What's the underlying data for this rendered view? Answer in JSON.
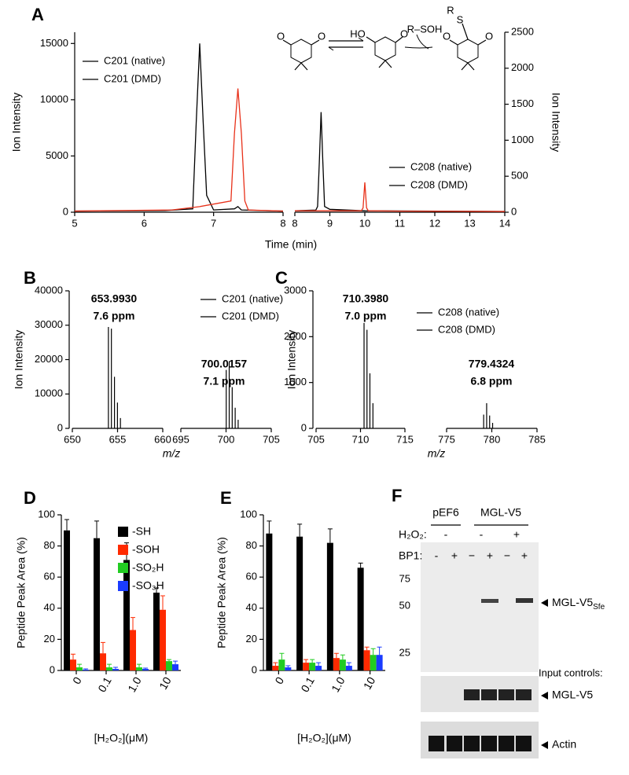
{
  "chart_data": [
    {
      "type": "chromatogram",
      "panel_label": "A",
      "x_label": "Time (min)",
      "y_label": "Ion Intensity",
      "y2_label": "Ion Intensity",
      "segments": [
        {
          "xlim": [
            5,
            8
          ],
          "xticks": [
            5,
            6,
            7,
            8
          ],
          "legend": "upper left"
        },
        {
          "xlim": [
            8,
            14
          ],
          "xticks": [
            8,
            9,
            10,
            11,
            12,
            13,
            14
          ],
          "legend": "lower right"
        }
      ],
      "ylim": [
        0,
        16000
      ],
      "yticks": [
        0,
        5000,
        10000,
        15000
      ],
      "y2lim": [
        0,
        2500
      ],
      "y2ticks": [
        0,
        500,
        1000,
        1500,
        2000,
        2500
      ],
      "series": [
        {
          "name": "C201 (native)",
          "color": "#000000",
          "segment": 0,
          "x": [
            5,
            6.3,
            6.7,
            6.75,
            6.8,
            6.85,
            6.9,
            7.0,
            7.3,
            7.35,
            7.4,
            8
          ],
          "values": [
            100,
            150,
            300,
            8000,
            15000,
            8000,
            1500,
            200,
            300,
            500,
            200,
            100
          ]
        },
        {
          "name": "C201 (DMD)",
          "color": "#e8311a",
          "segment": 0,
          "x": [
            5,
            6.4,
            6.8,
            7.25,
            7.3,
            7.35,
            7.4,
            7.45,
            7.5,
            8
          ],
          "values": [
            100,
            200,
            500,
            1000,
            7000,
            11000,
            7000,
            1000,
            200,
            100
          ]
        },
        {
          "name": "C208 (native)",
          "color": "#000000",
          "segment": 1,
          "axis": "y2",
          "x": [
            8,
            8.6,
            8.65,
            8.7,
            8.75,
            8.8,
            8.85,
            9,
            10,
            14
          ],
          "values": [
            20,
            30,
            80,
            700,
            1390,
            700,
            80,
            40,
            20,
            10
          ]
        },
        {
          "name": "C208 (DMD)",
          "color": "#e8311a",
          "segment": 1,
          "axis": "y2",
          "x": [
            8,
            9.9,
            9.95,
            10.0,
            10.05,
            10.1,
            11,
            14
          ],
          "values": [
            20,
            20,
            60,
            415,
            60,
            20,
            15,
            10
          ]
        }
      ],
      "scheme_labels": [
        "O",
        "O",
        "HO",
        "O",
        "R–SOH",
        "R",
        "S",
        "O",
        "O"
      ]
    },
    {
      "type": "mass-spectrum",
      "panel_label": "B",
      "x_label": "m/z",
      "y_label": "Ion Intensity",
      "segments": [
        {
          "xlim": [
            650,
            660
          ],
          "xticks": [
            650,
            655,
            660
          ]
        },
        {
          "xlim": [
            695,
            705
          ],
          "xticks": [
            695,
            700,
            705
          ]
        }
      ],
      "ylim": [
        0,
        40000
      ],
      "yticks": [
        0,
        10000,
        20000,
        30000,
        40000
      ],
      "series": [
        {
          "name": "C201 (native)",
          "color": "#000000",
          "segment": 0,
          "x": [
            653.99,
            654.32,
            654.66,
            654.99,
            655.32
          ],
          "values": [
            29500,
            29000,
            15000,
            7500,
            3000
          ],
          "annotation": [
            "653.9930",
            "7.6 ppm"
          ]
        },
        {
          "name": "C201 (DMD)",
          "color": "#e8311a",
          "segment": 1,
          "x": [
            700.02,
            700.35,
            700.68,
            701.01,
            701.34
          ],
          "values": [
            17000,
            19500,
            12000,
            6000,
            2500
          ],
          "annotation": [
            "700.0157",
            "7.1 ppm"
          ]
        }
      ]
    },
    {
      "type": "mass-spectrum",
      "panel_label": "C",
      "x_label": "m/z",
      "y_label": "Ion Intensity",
      "segments": [
        {
          "xlim": [
            705,
            715
          ],
          "xticks": [
            705,
            710,
            715
          ]
        },
        {
          "xlim": [
            775,
            785
          ],
          "xticks": [
            775,
            780,
            785
          ]
        }
      ],
      "ylim": [
        0,
        3000
      ],
      "yticks": [
        0,
        1000,
        2000,
        3000
      ],
      "series": [
        {
          "name": "C208 (native)",
          "color": "#000000",
          "segment": 0,
          "x": [
            710.4,
            710.73,
            711.06,
            711.4
          ],
          "values": [
            2300,
            2150,
            1200,
            550
          ],
          "annotation": [
            "710.3980",
            "7.0 ppm"
          ]
        },
        {
          "name": "C208 (DMD)",
          "color": "#e8311a",
          "segment": 1,
          "x": [
            779.1,
            779.43,
            779.76,
            780.09
          ],
          "values": [
            300,
            550,
            280,
            120
          ],
          "annotation": [
            "779.4324",
            "6.8 ppm"
          ]
        }
      ]
    },
    {
      "type": "bar",
      "panel_label": "D",
      "x_label": "[H₂O₂](μM)",
      "y_label": "Peptide Peak Area (%)",
      "legend": "upper right",
      "categories": [
        "0",
        "0.1",
        "1.0",
        "10"
      ],
      "ylim": [
        0,
        100
      ],
      "yticks": [
        0,
        20,
        40,
        60,
        80,
        100
      ],
      "series": [
        {
          "name": "-SH",
          "color": "#000000",
          "values": [
            90,
            85,
            71,
            50
          ],
          "errors": [
            7,
            11,
            11,
            3
          ]
        },
        {
          "name": "-SOH",
          "color": "#ff2a00",
          "values": [
            7,
            11,
            26,
            39
          ],
          "errors": [
            3.5,
            7,
            8,
            9
          ]
        },
        {
          "name": "-SO₂H",
          "color": "#22cc22",
          "values": [
            2,
            2,
            2,
            6
          ],
          "errors": [
            2,
            2,
            2,
            1
          ]
        },
        {
          "name": "-SO₃H",
          "color": "#1a3cff",
          "values": [
            0.5,
            1,
            1,
            4
          ],
          "errors": [
            0.5,
            1,
            0.5,
            2
          ]
        }
      ]
    },
    {
      "type": "bar",
      "panel_label": "E",
      "x_label": "[H₂O₂](μM)",
      "y_label": "Peptide Peak Area (%)",
      "categories": [
        "0",
        "0.1",
        "1.0",
        "10"
      ],
      "ylim": [
        0,
        100
      ],
      "yticks": [
        0,
        20,
        40,
        60,
        80,
        100
      ],
      "series": [
        {
          "color": "#000000",
          "values": [
            88,
            86,
            82,
            66
          ],
          "errors": [
            8,
            8,
            9,
            3
          ]
        },
        {
          "color": "#ff2a00",
          "values": [
            3,
            5,
            8,
            13
          ],
          "errors": [
            2,
            2,
            3,
            2
          ]
        },
        {
          "color": "#22cc22",
          "values": [
            7,
            5,
            7,
            10
          ],
          "errors": [
            4,
            2,
            3,
            4
          ]
        },
        {
          "color": "#1a3cff",
          "values": [
            2,
            3,
            3,
            10
          ],
          "errors": [
            1,
            2,
            2,
            5
          ]
        }
      ]
    }
  ],
  "blot": {
    "panel_label": "F",
    "groups": [
      "pEF6",
      "MGL-V5"
    ],
    "h2o2_label": "H₂O₂:",
    "h2o2": [
      "-",
      "-",
      "+"
    ],
    "bp1_label": "BP1:",
    "bp1": [
      "-",
      "+",
      "−",
      "+",
      "−",
      "+"
    ],
    "markers": [
      "75",
      "50",
      "25"
    ],
    "target_label": "MGL-V5",
    "target_subscript": "Sfe",
    "input_label": "Input controls:",
    "input_bands": [
      "MGL-V5",
      "Actin"
    ]
  }
}
